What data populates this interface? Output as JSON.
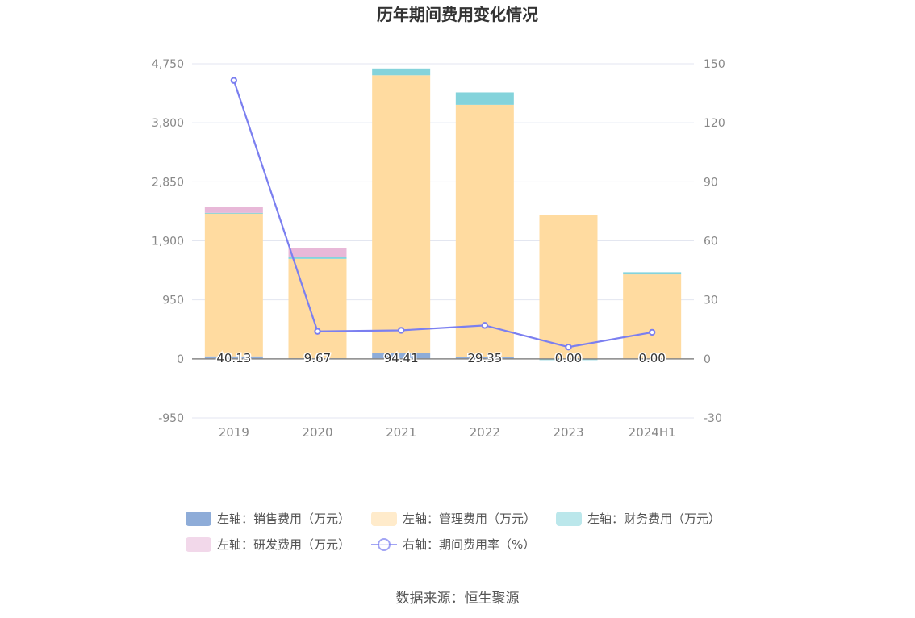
{
  "chart_data": {
    "type": "bar",
    "title": "历年期间费用变化情况",
    "categories": [
      "2019",
      "2020",
      "2021",
      "2022",
      "2023",
      "2024H1"
    ],
    "left_axis": {
      "ticks": [
        "4,750",
        "3,800",
        "2,850",
        "1,900",
        "950",
        "0",
        "-950"
      ],
      "ylim": [
        -950,
        4750
      ]
    },
    "right_axis": {
      "ticks": [
        "150",
        "120",
        "90",
        "60",
        "30",
        "0",
        "-30"
      ],
      "ylim": [
        -30,
        150
      ]
    },
    "series": [
      {
        "name": "左轴：销售费用（万元）",
        "axis": "left",
        "type": "bar",
        "color": "#8eacd8",
        "values": [
          40.13,
          9.67,
          94.41,
          29.35,
          0.0,
          0.0
        ]
      },
      {
        "name": "左轴：管理费用（万元）",
        "axis": "left",
        "type": "bar",
        "color": "#ffdba0",
        "values": [
          2300,
          1600,
          4470,
          4060,
          2310,
          1360
        ]
      },
      {
        "name": "左轴：财务费用（万元）",
        "axis": "left",
        "type": "bar",
        "color": "#84d3db",
        "values": [
          10,
          30,
          110,
          200,
          -20,
          35
        ]
      },
      {
        "name": "左轴：研发费用（万元）",
        "axis": "left",
        "type": "bar",
        "color": "#e8b8d8",
        "values": [
          100,
          140,
          0,
          0,
          0,
          0
        ]
      },
      {
        "name": "右轴：期间费用率（%）",
        "axis": "right",
        "type": "line",
        "color": "#7b7ff0",
        "values": [
          141.5,
          14.0,
          14.5,
          17.0,
          6.0,
          13.5
        ]
      }
    ],
    "data_labels": [
      "40.13",
      "9.67",
      "94.41",
      "29.35",
      "0.00",
      "0.00"
    ],
    "legend_position": "bottom",
    "grid": true
  },
  "source_text": "数据来源：恒生聚源"
}
